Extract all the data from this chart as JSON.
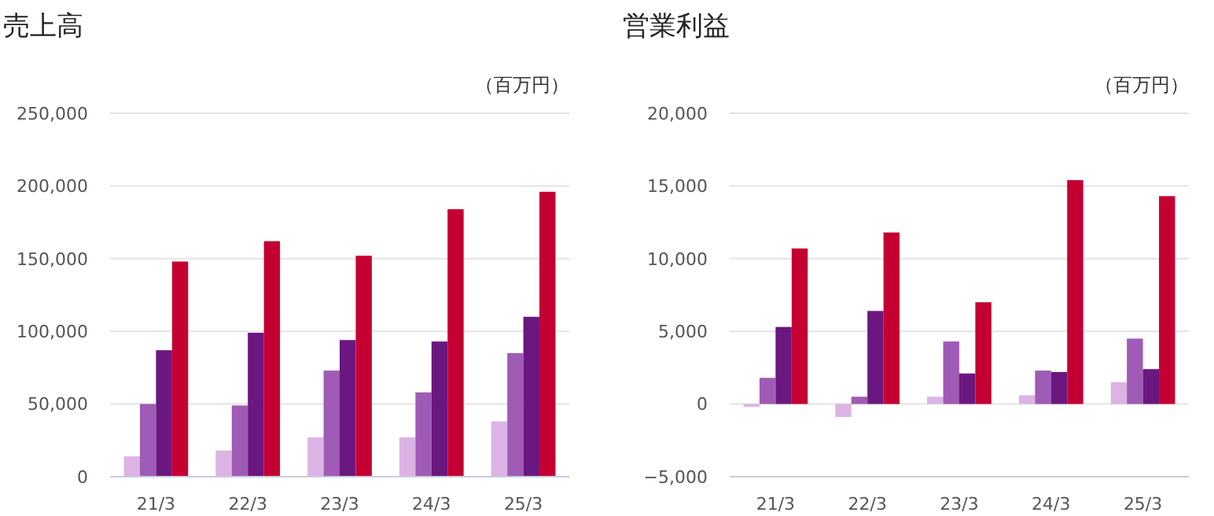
{
  "chart_data": [
    {
      "type": "bar",
      "title": "売上高",
      "annotations": [
        "（百万円）"
      ],
      "categories": [
        "21/3",
        "22/3",
        "23/3",
        "24/3",
        "25/3"
      ],
      "series": [
        {
          "color": "#dbb4e3",
          "values": [
            14000,
            18000,
            27000,
            27000,
            38000
          ]
        },
        {
          "color": "#9f5bb5",
          "values": [
            50000,
            49000,
            73000,
            58000,
            85000
          ]
        },
        {
          "color": "#6b1780",
          "values": [
            87000,
            99000,
            94000,
            93000,
            110000
          ]
        },
        {
          "color": "#c40033",
          "values": [
            148000,
            162000,
            152000,
            184000,
            196000
          ]
        }
      ],
      "ylim": [
        0,
        250000
      ],
      "yticks": [
        {
          "value": 0,
          "label": "0"
        },
        {
          "value": 50000,
          "label": "50,000"
        },
        {
          "value": 100000,
          "label": "100,000"
        },
        {
          "value": 150000,
          "label": "150,000"
        },
        {
          "value": 200000,
          "label": "200,000"
        },
        {
          "value": 250000,
          "label": "250,000"
        }
      ],
      "grid": "y"
    },
    {
      "type": "bar",
      "title": "営業利益",
      "annotations": [
        "（百万円）"
      ],
      "categories": [
        "21/3",
        "22/3",
        "23/3",
        "24/3",
        "25/3"
      ],
      "series": [
        {
          "color": "#dbb4e3",
          "values": [
            -200,
            -900,
            500,
            600,
            1500
          ]
        },
        {
          "color": "#9f5bb5",
          "values": [
            1800,
            500,
            4300,
            2300,
            4500
          ]
        },
        {
          "color": "#6b1780",
          "values": [
            5300,
            6400,
            2100,
            2200,
            2400
          ]
        },
        {
          "color": "#c40033",
          "values": [
            10700,
            11800,
            7000,
            15400,
            14300
          ]
        }
      ],
      "ylim": [
        -5000,
        20000
      ],
      "yticks": [
        {
          "value": -5000,
          "label": "−5,000"
        },
        {
          "value": 0,
          "label": "0"
        },
        {
          "value": 5000,
          "label": "5,000"
        },
        {
          "value": 10000,
          "label": "10,000"
        },
        {
          "value": 15000,
          "label": "15,000"
        },
        {
          "value": 20000,
          "label": "20,000"
        }
      ],
      "grid": "y"
    }
  ]
}
